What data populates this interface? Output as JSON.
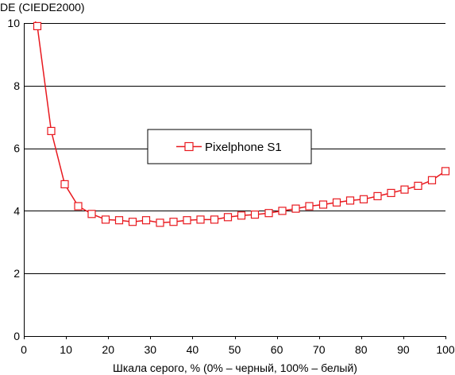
{
  "colors": {
    "series": "#e8191f",
    "grid": "#000000",
    "axis": "#000000",
    "background": "#ffffff"
  },
  "chart_data": {
    "type": "line",
    "ylabel": "DE (CIEDE2000)",
    "xlabel": "Шкала серого, % (0% – черный, 100% – белый)",
    "xlim": [
      0,
      100
    ],
    "ylim": [
      0,
      10
    ],
    "x_ticks": [
      0,
      10,
      20,
      30,
      40,
      50,
      60,
      70,
      80,
      90,
      100
    ],
    "y_ticks": [
      0,
      2,
      4,
      6,
      8,
      10
    ],
    "grid": "horizontal",
    "legend_position": "center-right",
    "series": [
      {
        "name": "Pixelphone S1",
        "marker": "open-square",
        "x": [
          3.2,
          6.5,
          9.7,
          12.9,
          16.1,
          19.4,
          22.6,
          25.8,
          29.0,
          32.3,
          35.5,
          38.7,
          41.9,
          45.2,
          48.4,
          51.6,
          54.8,
          58.1,
          61.3,
          64.5,
          67.7,
          71.0,
          74.2,
          77.4,
          80.6,
          83.9,
          87.1,
          90.3,
          93.5,
          96.8,
          100
        ],
        "y": [
          9.9,
          6.55,
          4.85,
          4.15,
          3.9,
          3.72,
          3.7,
          3.65,
          3.7,
          3.62,
          3.65,
          3.7,
          3.72,
          3.72,
          3.8,
          3.85,
          3.88,
          3.93,
          4.0,
          4.07,
          4.15,
          4.2,
          4.27,
          4.33,
          4.37,
          4.47,
          4.57,
          4.68,
          4.8,
          4.98,
          5.27
        ]
      }
    ]
  }
}
